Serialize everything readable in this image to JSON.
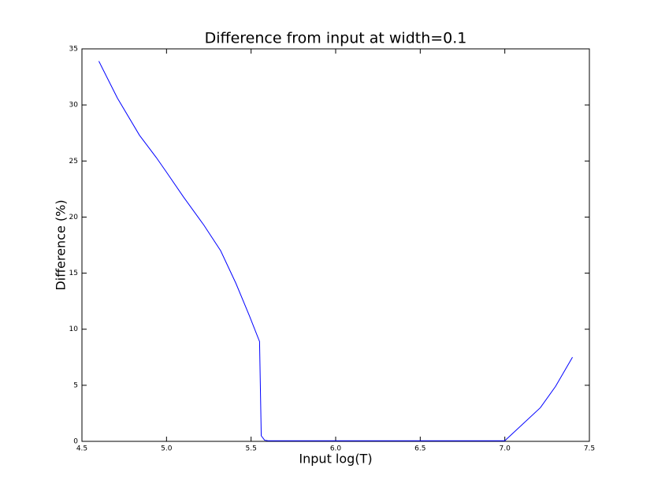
{
  "chart_data": {
    "type": "line",
    "title": "Difference from input at width=0.1",
    "xlabel": "Input log(T)",
    "ylabel": "Difference (%)",
    "color": "#0000ff",
    "x": [
      4.6,
      4.71,
      4.84,
      4.94,
      5.0,
      5.1,
      5.22,
      5.32,
      5.41,
      5.49,
      5.55,
      5.56,
      5.58,
      5.6,
      6.0,
      6.5,
      7.0,
      7.21,
      7.3,
      7.4
    ],
    "values": [
      33.9,
      30.6,
      27.3,
      25.3,
      24.0,
      21.8,
      19.3,
      17.0,
      14.1,
      11.2,
      8.9,
      0.5,
      0.1,
      0.05,
      0.05,
      0.05,
      0.05,
      3.0,
      4.9,
      7.5
    ],
    "xlim": [
      4.5,
      7.5
    ],
    "xticks": [
      4.5,
      {
        "value": 5,
        "label": "5.0"
      },
      5.5,
      {
        "value": 6,
        "label": "6.0"
      },
      6.5,
      {
        "value": 7,
        "label": "7.0"
      },
      7.5
    ],
    "ylim": [
      0,
      35
    ],
    "yticks": [
      0,
      5,
      10,
      15,
      20,
      25,
      30,
      35
    ],
    "grid": false
  }
}
